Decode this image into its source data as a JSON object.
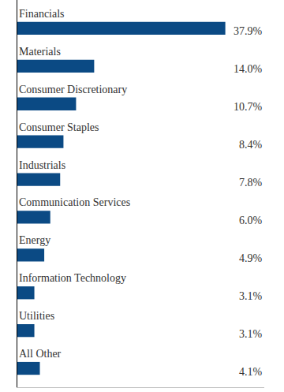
{
  "chart_data": {
    "type": "bar",
    "orientation": "horizontal",
    "categories": [
      "Financials",
      "Materials",
      "Consumer Discretionary",
      "Consumer Staples",
      "Industrials",
      "Communication Services",
      "Energy",
      "Information Technology",
      "Utilities",
      "All Other"
    ],
    "values": [
      37.9,
      14.0,
      10.7,
      8.4,
      7.8,
      6.0,
      4.9,
      3.1,
      3.1,
      4.1
    ],
    "value_labels": [
      "37.9%",
      "14.0%",
      "10.7%",
      "8.4%",
      "7.8%",
      "6.0%",
      "4.9%",
      "3.1%",
      "3.1%",
      "4.1%"
    ],
    "data_labels": true,
    "color": "#0b4a84",
    "xlim": [
      0,
      45
    ],
    "xticks": [],
    "grid": false,
    "tick_labels": false
  }
}
